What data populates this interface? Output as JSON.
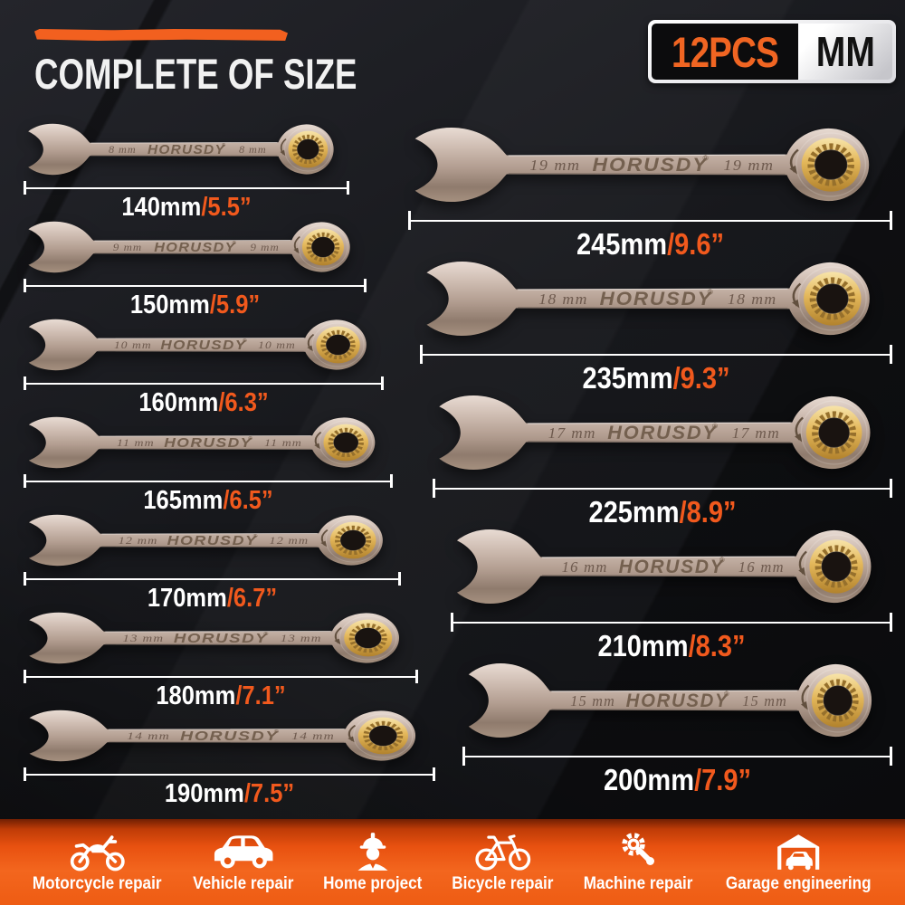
{
  "header": {
    "title": "COMPLETE OF SIZE",
    "badge": {
      "count": "12PCS",
      "unit": "MM"
    }
  },
  "brand_stamp": "HORUSDY",
  "brand_reg": "®",
  "colors": {
    "accent_orange": "#f1591d",
    "footer_orange": "#ee5c13",
    "badge_orange": "#f06522",
    "metal_tan": "#b5a093",
    "ratchet_gold": "#e3b75a",
    "background_dark": "#16171b"
  },
  "wrenches": {
    "left": [
      {
        "size": "8 mm",
        "len": 140,
        "len_mm": "140mm",
        "len_in": "/5.5”"
      },
      {
        "size": "9 mm",
        "len": 150,
        "len_mm": "150mm",
        "len_in": "/5.9”"
      },
      {
        "size": "10 mm",
        "len": 160,
        "len_mm": "160mm",
        "len_in": "/6.3”"
      },
      {
        "size": "11 mm",
        "len": 165,
        "len_mm": "165mm",
        "len_in": "/6.5”"
      },
      {
        "size": "12 mm",
        "len": 170,
        "len_mm": "170mm",
        "len_in": "/6.7”"
      },
      {
        "size": "13 mm",
        "len": 180,
        "len_mm": "180mm",
        "len_in": "/7.1”"
      },
      {
        "size": "14 mm",
        "len": 190,
        "len_mm": "190mm",
        "len_in": "/7.5”"
      }
    ],
    "right": [
      {
        "size": "19 mm",
        "len": 245,
        "len_mm": "245mm",
        "len_in": "/9.6”"
      },
      {
        "size": "18 mm",
        "len": 235,
        "len_mm": "235mm",
        "len_in": "/9.3”"
      },
      {
        "size": "17 mm",
        "len": 225,
        "len_mm": "225mm",
        "len_in": "/8.9”"
      },
      {
        "size": "16 mm",
        "len": 210,
        "len_mm": "210mm",
        "len_in": "/8.3”"
      },
      {
        "size": "15 mm",
        "len": 200,
        "len_mm": "200mm",
        "len_in": "/7.9”"
      }
    ]
  },
  "features": [
    {
      "label": "Motorcycle repair",
      "icon": "motorcycle-icon"
    },
    {
      "label": "Vehicle repair",
      "icon": "car-icon"
    },
    {
      "label": "Home project",
      "icon": "worker-icon"
    },
    {
      "label": "Bicycle repair",
      "icon": "bicycle-icon"
    },
    {
      "label": "Machine repair",
      "icon": "gear-wrench-icon"
    },
    {
      "label": "Garage engineering",
      "icon": "garage-icon"
    }
  ]
}
